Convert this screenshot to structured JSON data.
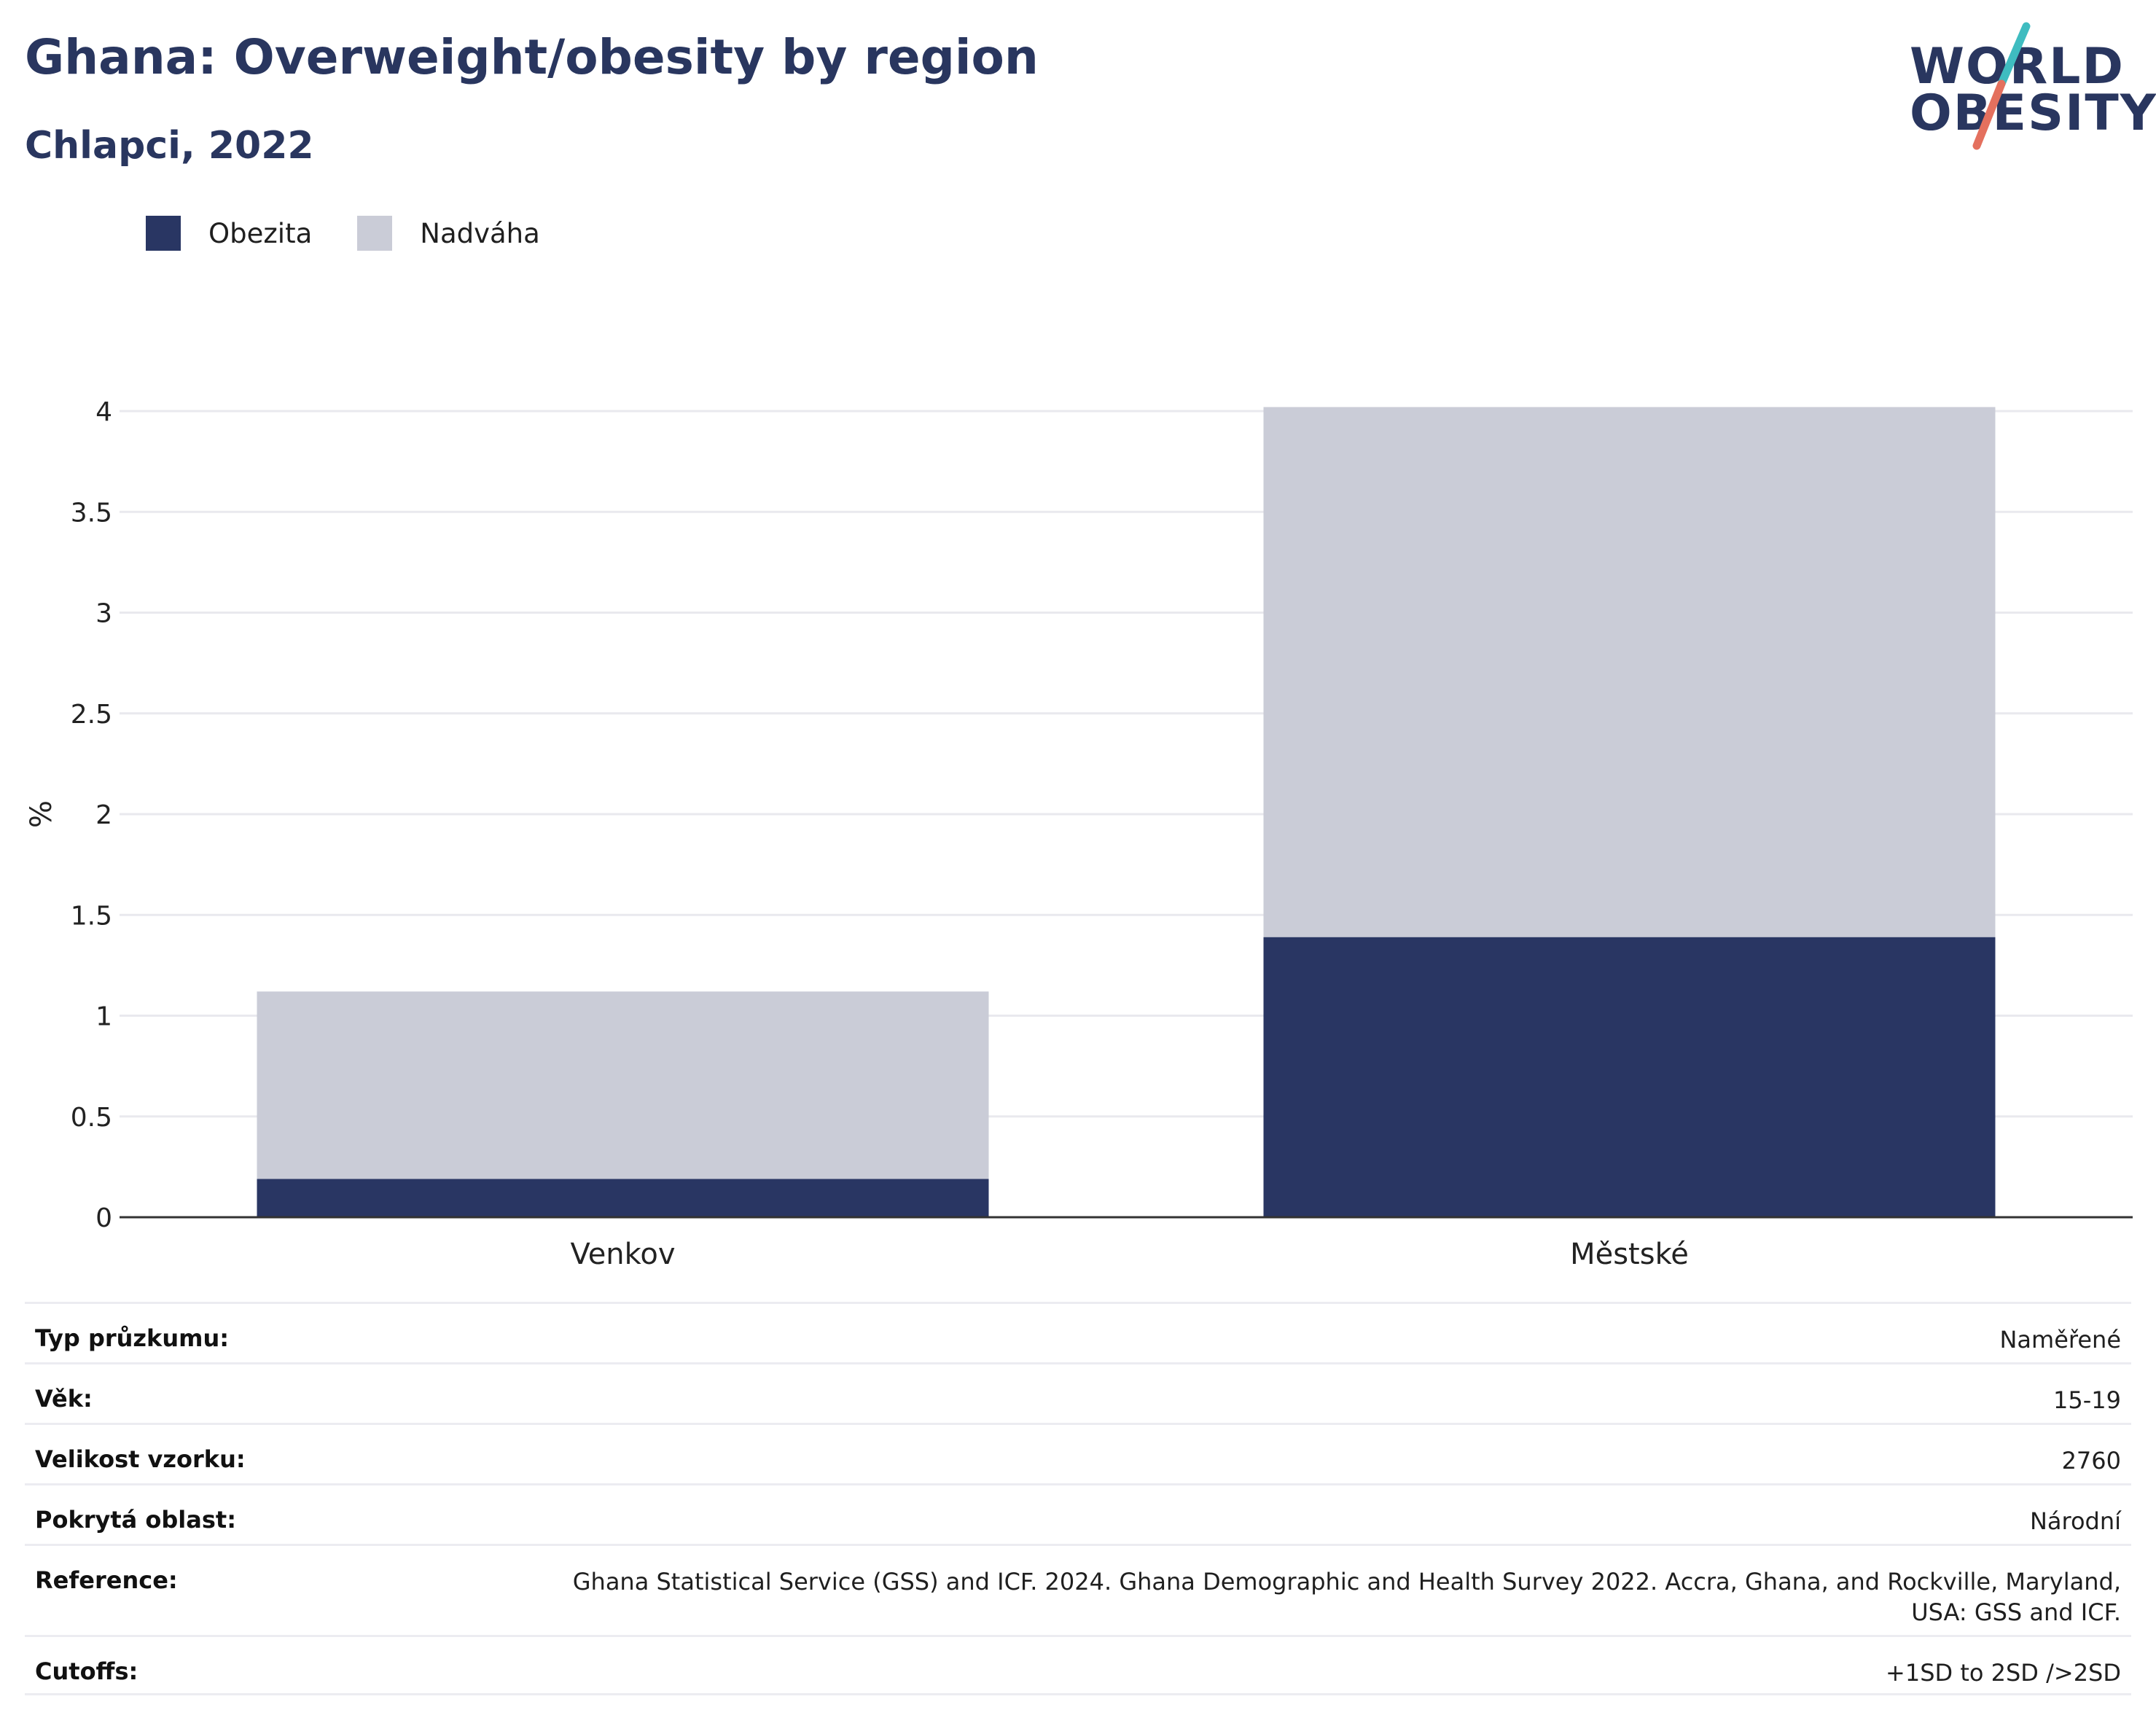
{
  "header": {
    "title": "Ghana: Overweight/obesity by region",
    "subtitle": "Chlapci, 2022"
  },
  "logo": {
    "line1": "WORLD",
    "line2": "OBESITY",
    "accent_teal": "#3fbcc0",
    "accent_coral": "#e4705e"
  },
  "colors": {
    "obesity": "#293663",
    "overweight": "#caccd7",
    "grid": "#e9e9ee",
    "axis": "#333333"
  },
  "chart_data": {
    "type": "bar",
    "stacked": true,
    "categories": [
      "Venkov",
      "Městské"
    ],
    "series": [
      {
        "name": "Obezita",
        "values": [
          0.19,
          1.39
        ]
      },
      {
        "name": "Nadváha",
        "values": [
          0.93,
          2.63
        ]
      }
    ],
    "ylabel": "%",
    "ylim": [
      0,
      4.1
    ],
    "yticks": [
      0,
      0.5,
      1,
      1.5,
      2,
      2.5,
      3,
      3.5,
      4
    ],
    "ytick_labels": [
      "0",
      "0.5",
      "1",
      "1.5",
      "2",
      "2.5",
      "3",
      "3.5",
      "4"
    ],
    "grid": true,
    "legend": "top-left"
  },
  "info": [
    {
      "label": "Typ průzkumu:",
      "value": "Naměřené"
    },
    {
      "label": "Věk:",
      "value": "15-19"
    },
    {
      "label": "Velikost vzorku:",
      "value": "2760"
    },
    {
      "label": "Pokrytá oblast:",
      "value": "Národní"
    },
    {
      "label": "Reference:",
      "value": "Ghana Statistical Service (GSS) and ICF. 2024. Ghana Demographic and Health Survey 2022. Accra, Ghana, and Rockville, Maryland, USA: GSS and ICF."
    },
    {
      "label": "Cutoffs:",
      "value": "+1SD to 2SD />2SD"
    }
  ]
}
